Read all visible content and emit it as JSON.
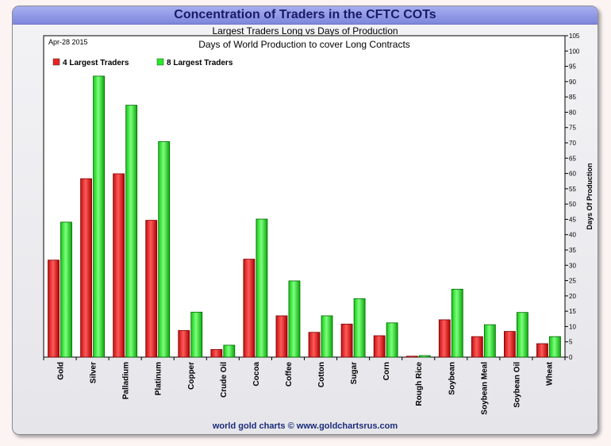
{
  "page": {
    "title": "Concentration of Traders in the CFTC COTs",
    "footer": "world gold charts © www.goldchartsrus.com"
  },
  "chart_data": {
    "type": "bar",
    "title": "Largest Traders Long vs Days of Production",
    "subtitle": "Days of World Production to cover Long Contracts",
    "date_label": "Apr-28 2015",
    "xlabel": "",
    "ylabel": "Days Of Production",
    "ylim": [
      0,
      105
    ],
    "ytick_step": 5,
    "legend_position": "top-left",
    "categories": [
      "Gold",
      "Silver",
      "Palladium",
      "Platinum",
      "Copper",
      "Crude Oil",
      "Cocoa",
      "Coffee",
      "Cotton",
      "Sugar",
      "Corn",
      "Rough Rice",
      "Soybean",
      "Soybean Meal",
      "Soybean Oil",
      "Wheat"
    ],
    "series": [
      {
        "name": "4 Largest Traders",
        "color": "#ee2222",
        "values": [
          31.7,
          58.3,
          59.9,
          44.7,
          8.7,
          2.5,
          32.0,
          13.5,
          8.1,
          10.8,
          7.0,
          0.3,
          12.2,
          6.7,
          8.4,
          4.4
        ]
      },
      {
        "name": "8 Largest Traders",
        "color": "#22ee22",
        "values": [
          44.1,
          91.8,
          82.3,
          70.4,
          14.7,
          3.9,
          45.1,
          24.9,
          13.5,
          19.1,
          11.2,
          0.5,
          22.2,
          10.6,
          14.6,
          6.7
        ]
      }
    ]
  }
}
